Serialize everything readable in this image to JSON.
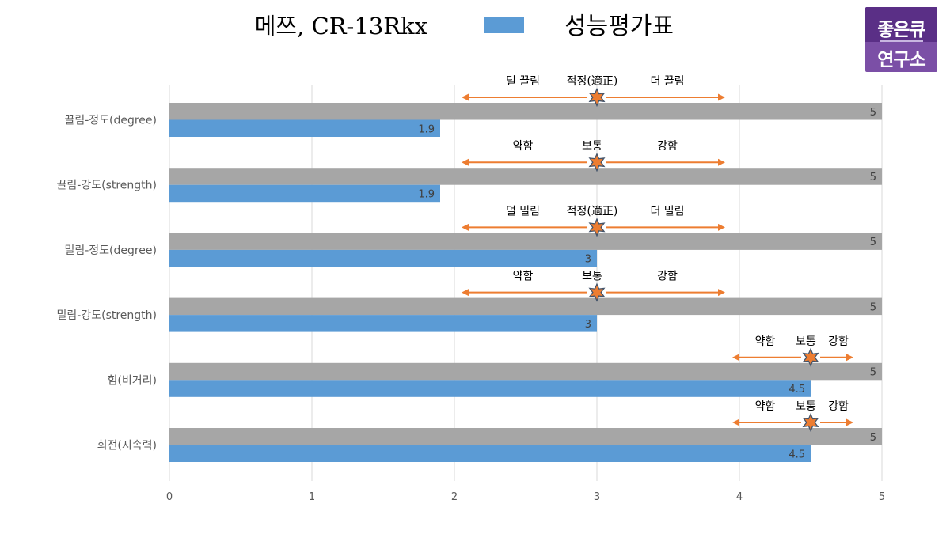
{
  "legend": {
    "series1_label": "메쯔, CR-13Rkx",
    "series2_label": "성능평가표"
  },
  "logo": {
    "line1": "좋은큐",
    "line2": "연구소"
  },
  "colors": {
    "gray_bar": "#a6a6a6",
    "blue_bar": "#5b9bd5",
    "arrow": "#ed7d31",
    "star_fill": "#ed7d31",
    "star_stroke": "#44546a",
    "grid": "#d9d9d9",
    "text": "#595959"
  },
  "chart_data": {
    "type": "bar",
    "orientation": "horizontal",
    "categories": [
      "끌림-정도(degree)",
      "끌림-강도(strength)",
      "밀림-정도(degree)",
      "밀림-강도(strength)",
      "힘(비거리)",
      "회전(지속력)"
    ],
    "series": [
      {
        "name": "메쯔, CR-13Rkx",
        "values": [
          5,
          5,
          5,
          5,
          5,
          5
        ],
        "color": "#a6a6a6"
      },
      {
        "name": "성능평가표",
        "values": [
          1.9,
          1.9,
          3,
          3,
          4.5,
          4.5
        ],
        "color": "#5b9bd5"
      }
    ],
    "x_ticks": [
      "0",
      "1",
      "2",
      "3",
      "4",
      "5"
    ],
    "xlim": [
      0,
      5
    ],
    "grid": "vertical",
    "legend_position": "top",
    "annotations": [
      {
        "left": "덜 끌림",
        "mid": "적정(適正)",
        "right": "더 끌림",
        "center": 3,
        "from": 2.05,
        "to": 3.9
      },
      {
        "left": "약함",
        "mid": "보통",
        "right": "강함",
        "center": 3,
        "from": 2.05,
        "to": 3.9
      },
      {
        "left": "덜 밀림",
        "mid": "적정(適正)",
        "right": "더 밀림",
        "center": 3,
        "from": 2.05,
        "to": 3.9
      },
      {
        "left": "약함",
        "mid": "보통",
        "right": "강함",
        "center": 3,
        "from": 2.05,
        "to": 3.9
      },
      {
        "left": "약함",
        "mid": "보통",
        "right": "강함",
        "center": 4.5,
        "from": 3.95,
        "to": 4.8
      },
      {
        "left": "약함",
        "mid": "보통",
        "right": "강함",
        "center": 4.5,
        "from": 3.95,
        "to": 4.8
      }
    ]
  }
}
